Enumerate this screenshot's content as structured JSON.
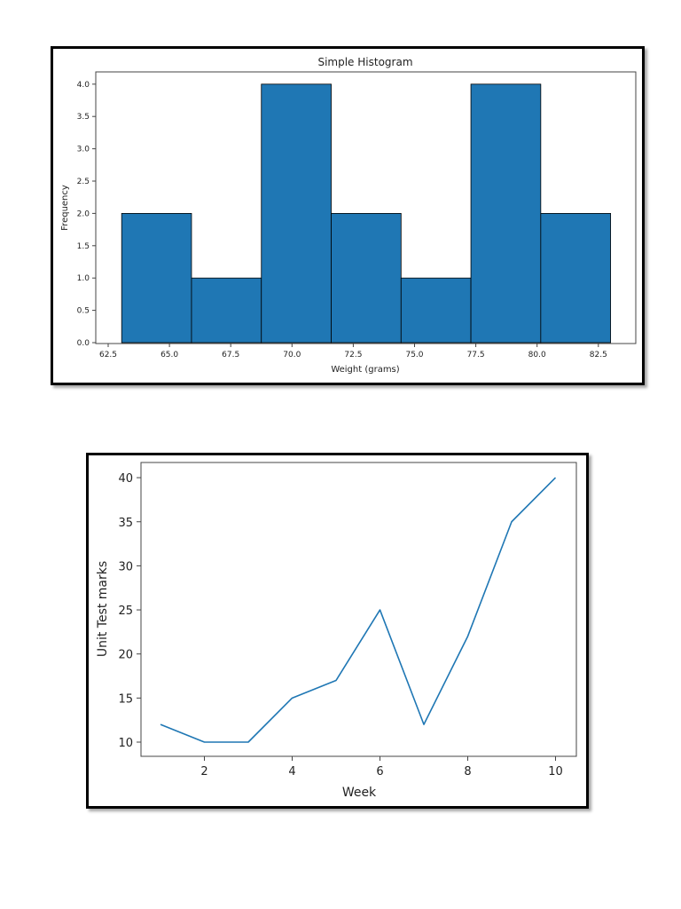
{
  "chart_data": [
    {
      "type": "bar",
      "subtype": "histogram",
      "title": "Simple Histogram",
      "xlabel": "Weight (grams)",
      "ylabel": "Frequency",
      "bin_edges": [
        63.05,
        65.9,
        68.75,
        71.6,
        74.45,
        77.3,
        80.15,
        83.0
      ],
      "values": [
        2,
        1,
        4,
        2,
        1,
        4,
        2
      ],
      "categories": [
        "63.05-65.9",
        "65.9-68.75",
        "68.75-71.6",
        "71.6-74.45",
        "74.45-77.3",
        "77.3-80.15",
        "80.15-83.0"
      ],
      "xticks": [
        "62.5",
        "65.0",
        "67.5",
        "70.0",
        "72.5",
        "75.0",
        "77.5",
        "80.0",
        "82.5"
      ],
      "yticks": [
        "0.0",
        "0.5",
        "1.0",
        "1.5",
        "2.0",
        "2.5",
        "3.0",
        "3.5",
        "4.0"
      ],
      "xlim": [
        62.1,
        84.2
      ],
      "ylim": [
        0,
        4.2
      ],
      "grid": false,
      "bar_color": "#1f77b4",
      "edge_color": "#000000"
    },
    {
      "type": "line",
      "title": "",
      "xlabel": "Week",
      "ylabel": "Unit Test marks",
      "x": [
        1,
        2,
        3,
        4,
        5,
        6,
        7,
        8,
        9,
        10
      ],
      "series": [
        {
          "name": "Unit Test marks",
          "values": [
            12,
            10,
            10,
            15,
            17,
            25,
            12,
            22,
            35,
            40
          ],
          "color": "#1f77b4"
        }
      ],
      "xticks": [
        "2",
        "4",
        "6",
        "8",
        "10"
      ],
      "yticks": [
        "10",
        "15",
        "20",
        "25",
        "30",
        "35",
        "40"
      ],
      "xlim": [
        0.55,
        10.45
      ],
      "ylim": [
        8.5,
        41.5
      ],
      "grid": false
    }
  ]
}
